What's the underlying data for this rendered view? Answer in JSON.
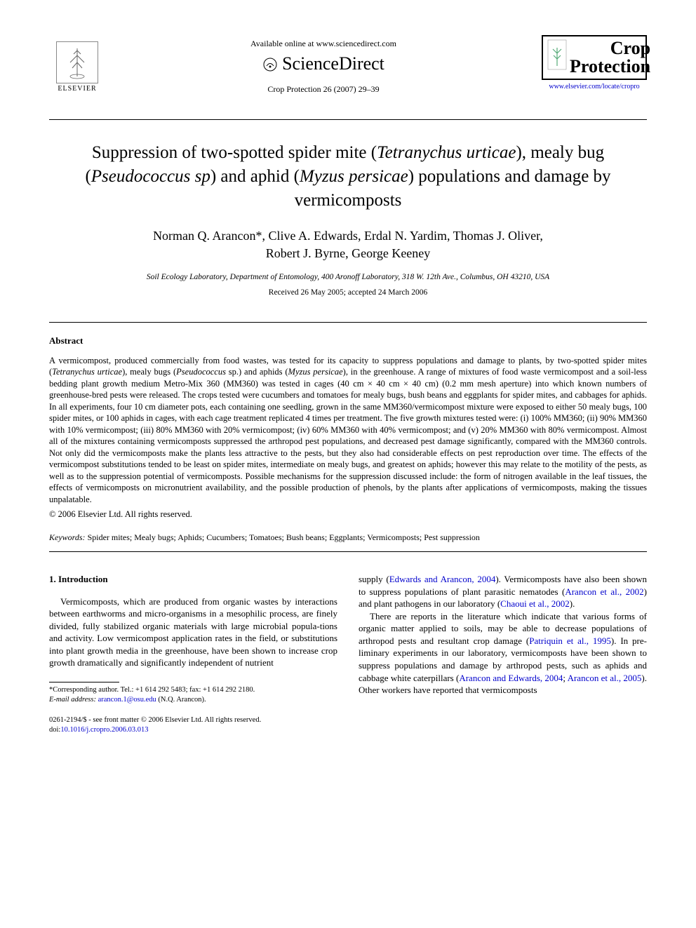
{
  "header": {
    "available_text": "Available online at www.sciencedirect.com",
    "sciencedirect_label": "ScienceDirect",
    "journal_ref": "Crop Protection 26 (2007) 29–39",
    "elsevier_label": "ELSEVIER",
    "journal_logo_title1": "Crop",
    "journal_logo_title2": "Protection",
    "journal_url": "www.elsevier.com/locate/cropro"
  },
  "article": {
    "title_html": "Suppression of two-spotted spider mite (<span class=\"ital\">Tetranychus urticae</span>), mealy bug (<span class=\"ital\">Pseudococcus sp</span>) and aphid (<span class=\"ital\">Myzus persicae</span>) populations and damage by vermicomposts",
    "authors_line1": "Norman Q. Arancon*, Clive A. Edwards, Erdal N. Yardim, Thomas J. Oliver,",
    "authors_line2": "Robert J. Byrne, George Keeney",
    "affiliation": "Soil Ecology Laboratory, Department of Entomology, 400 Aronoff Laboratory, 318 W. 12th Ave., Columbus, OH 43210, USA",
    "dates": "Received 26 May 2005; accepted 24 March 2006"
  },
  "abstract": {
    "heading": "Abstract",
    "text_html": "A vermicompost, produced commercially from food wastes, was tested for its capacity to suppress populations and damage to plants, by two-spotted spider mites (<span class=\"ital\">Tetranychus urticae</span>), mealy bugs (<span class=\"ital\">Pseudococcus</span> sp.) and aphids (<span class=\"ital\">Myzus persicae</span>), in the greenhouse. A range of mixtures of food waste vermicompost and a soil-less bedding plant growth medium Metro-Mix 360 (MM360) was tested in cages (40 cm × 40 cm × 40 cm) (0.2 mm mesh aperture) into which known numbers of greenhouse-bred pests were released. The crops tested were cucumbers and tomatoes for mealy bugs, bush beans and eggplants for spider mites, and cabbages for aphids. In all experiments, four 10 cm diameter pots, each containing one seedling, grown in the same MM360/vermicompost mixture were exposed to either 50 mealy bugs, 100 spider mites, or 100 aphids in cages, with each cage treatment replicated 4 times per treatment. The five growth mixtures tested were: (i) 100% MM360; (ii) 90% MM360 with 10% vermicompost; (iii) 80% MM360 with 20% vermicompost; (iv) 60% MM360 with 40% vermicompost; and (v) 20% MM360 with 80% vermicompost. Almost all of the mixtures containing vermicomposts suppressed the arthropod pest populations, and decreased pest damage significantly, compared with the MM360 controls. Not only did the vermicomposts make the plants less attractive to the pests, but they also had considerable effects on pest reproduction over time. The effects of the vermicompost substitutions tended to be least on spider mites, intermediate on mealy bugs, and greatest on aphids; however this may relate to the motility of the pests, as well as to the suppression potential of vermicomposts. Possible mechanisms for the suppression discussed include: the form of nitrogen available in the leaf tissues, the effects of vermicomposts on micronutrient availability, and the possible production of phenols, by the plants after applications of vermicomposts, making the tissues unpalatable.",
    "copyright": "© 2006 Elsevier Ltd. All rights reserved.",
    "keywords_label": "Keywords:",
    "keywords_text": " Spider mites; Mealy bugs; Aphids; Cucumbers; Tomatoes; Bush beans; Eggplants; Vermicomposts; Pest suppression"
  },
  "body": {
    "intro_heading": "1. Introduction",
    "col1_p1": "Vermicomposts, which are produced from organic wastes by interactions between earthworms and micro-organisms in a mesophilic process, are finely divided, fully stabilized organic materials with large microbial popula-tions and activity. Low vermicompost application rates in the field, or substitutions into plant growth media in the greenhouse, have been shown to increase crop growth dramatically and significantly independent of nutrient",
    "col2_p1_html": "supply (<span class=\"cite\">Edwards and Arancon, 2004</span>). Vermicomposts have also been shown to suppress populations of plant parasitic nematodes (<span class=\"cite\">Arancon et al., 2002</span>) and plant pathogens in our laboratory (<span class=\"cite\">Chaoui et al., 2002</span>).",
    "col2_p2_html": "There are reports in the literature which indicate that various forms of organic matter applied to soils, may be able to decrease populations of arthropod pests and resultant crop damage (<span class=\"cite\">Patriquin et al., 1995</span>). In pre-liminary experiments in our laboratory, vermicomposts have been shown to suppress populations and damage by arthropod pests, such as aphids and cabbage white caterpillars (<span class=\"cite\">Arancon and Edwards, 2004</span>; <span class=\"cite\">Arancon et al., 2005</span>). Other workers have reported that vermicomposts"
  },
  "footnote": {
    "corr_line": "*Corresponding author. Tel.: +1 614 292 5483; fax: +1 614 292 2180.",
    "email_label": "E-mail address:",
    "email_value": "arancon.1@osu.edu",
    "email_paren": "(N.Q. Arancon)."
  },
  "footer": {
    "line1": "0261-2194/$ - see front matter © 2006 Elsevier Ltd. All rights reserved.",
    "doi_label": "doi:",
    "doi_value": "10.1016/j.cropro.2006.03.013"
  },
  "colors": {
    "link": "#0000cc",
    "text": "#000000",
    "bg": "#ffffff"
  }
}
